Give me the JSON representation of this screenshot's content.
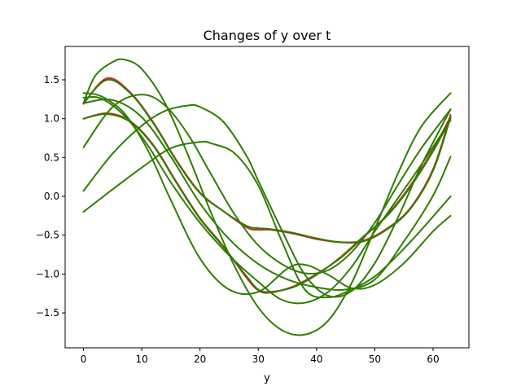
{
  "chart_data": {
    "type": "line",
    "title": "Changes of y over t",
    "xlabel": "y",
    "ylabel": "",
    "xlim": [
      -3.15,
      66.15
    ],
    "ylim": [
      -1.95,
      1.93
    ],
    "xticks": [
      0,
      10,
      20,
      30,
      40,
      50,
      60
    ],
    "yticks": [
      -1.5,
      -1.0,
      -0.5,
      0.0,
      0.5,
      1.0,
      1.5
    ],
    "ytick_labels": [
      "−1.5",
      "−1.0",
      "−0.5",
      "0.0",
      "0.5",
      "1.0",
      "1.5"
    ],
    "grid": false,
    "legend": "none",
    "colors": {
      "reference": "#d62728",
      "prediction": "#2e7d00"
    },
    "series": [
      {
        "color": "reference",
        "x": [
          0,
          4,
          8,
          12,
          16,
          20,
          24,
          28,
          30,
          32,
          36,
          40,
          44,
          48,
          52,
          56,
          60,
          63
        ],
        "values": [
          1.19,
          1.52,
          1.34,
          0.95,
          0.46,
          0.05,
          -0.19,
          -0.4,
          -0.43,
          -0.43,
          -0.48,
          -0.55,
          -0.59,
          -0.57,
          -0.42,
          -0.16,
          0.35,
          1.05
        ]
      },
      {
        "color": "reference",
        "x": [
          0,
          4,
          8,
          12,
          16,
          20,
          24,
          28,
          30,
          32,
          36,
          40,
          44,
          48,
          52,
          56,
          60,
          63
        ],
        "values": [
          1.0,
          1.07,
          0.97,
          0.66,
          0.18,
          -0.28,
          -0.64,
          -1.05,
          -1.21,
          -1.24,
          -1.16,
          -1.0,
          -0.8,
          -0.53,
          -0.25,
          0.13,
          0.6,
          1.03
        ]
      },
      {
        "color": "prediction",
        "x": [
          0,
          4,
          8,
          12,
          16,
          20,
          24,
          28,
          30,
          32,
          36,
          40,
          44,
          48,
          52,
          56,
          60,
          63
        ],
        "values": [
          1.2,
          1.5,
          1.33,
          0.94,
          0.45,
          0.04,
          -0.19,
          -0.38,
          -0.41,
          -0.42,
          -0.47,
          -0.54,
          -0.59,
          -0.58,
          -0.43,
          -0.17,
          0.33,
          1.02
        ]
      },
      {
        "color": "prediction",
        "x": [
          0,
          4,
          8,
          12,
          16,
          20,
          24,
          28,
          30,
          32,
          36,
          40,
          44,
          48,
          52,
          56,
          60,
          63
        ],
        "values": [
          1.0,
          1.06,
          0.96,
          0.65,
          0.17,
          -0.29,
          -0.65,
          -1.03,
          -1.2,
          -1.23,
          -1.17,
          -1.01,
          -0.79,
          -0.52,
          -0.26,
          0.11,
          0.58,
          1.0
        ]
      },
      {
        "color": "prediction",
        "x": [
          0,
          3,
          7,
          11,
          15,
          20,
          25,
          30,
          35,
          38,
          42,
          46,
          50,
          55,
          60,
          63
        ],
        "values": [
          1.33,
          1.29,
          1.07,
          0.6,
          -0.05,
          -0.8,
          -1.2,
          -1.23,
          -0.93,
          -0.88,
          -1.01,
          -1.18,
          -1.14,
          -0.86,
          -0.45,
          -0.25
        ]
      },
      {
        "color": "prediction",
        "x": [
          0,
          3,
          7,
          11,
          15,
          20,
          25,
          30,
          34,
          38,
          42,
          46,
          50,
          54,
          58,
          63
        ],
        "values": [
          1.27,
          1.26,
          1.04,
          0.66,
          0.18,
          -0.34,
          -0.76,
          -1.1,
          -1.33,
          -1.37,
          -1.23,
          -0.91,
          -0.45,
          -0.02,
          0.41,
          0.98
        ]
      },
      {
        "color": "prediction",
        "x": [
          0,
          2,
          5,
          7,
          10,
          14,
          18,
          22,
          26,
          30,
          34,
          38,
          42,
          46,
          50,
          54,
          58,
          63
        ],
        "values": [
          1.2,
          1.55,
          1.73,
          1.76,
          1.64,
          1.2,
          0.52,
          -0.23,
          -0.91,
          -1.43,
          -1.72,
          -1.78,
          -1.6,
          -1.12,
          -0.42,
          0.3,
          0.9,
          1.33
        ]
      },
      {
        "color": "prediction",
        "x": [
          0,
          5,
          10,
          14,
          18,
          22,
          26,
          30,
          34,
          38,
          42,
          46,
          50,
          54,
          58,
          63
        ],
        "values": [
          0.63,
          1.15,
          1.31,
          1.17,
          0.79,
          0.27,
          -0.24,
          -0.63,
          -0.87,
          -0.99,
          -0.95,
          -0.72,
          -0.34,
          0.15,
          0.62,
          1.12
        ]
      },
      {
        "color": "prediction",
        "x": [
          0,
          5,
          10,
          14,
          18,
          20,
          24,
          28,
          30,
          34,
          38,
          42,
          46,
          50,
          54,
          58,
          63
        ],
        "values": [
          0.07,
          0.55,
          0.91,
          1.1,
          1.17,
          1.15,
          0.96,
          0.52,
          0.2,
          -0.43,
          -1.01,
          -1.28,
          -1.22,
          -0.86,
          -0.27,
          0.4,
          1.12
        ]
      },
      {
        "color": "prediction",
        "x": [
          0,
          5,
          10,
          15,
          20,
          22,
          26,
          30,
          34,
          38,
          42,
          46,
          50,
          54,
          58,
          63
        ],
        "values": [
          -0.2,
          0.09,
          0.37,
          0.62,
          0.7,
          0.68,
          0.55,
          0.14,
          -0.57,
          -1.2,
          -1.3,
          -1.2,
          -1.03,
          -0.75,
          -0.43,
          0.0
        ]
      },
      {
        "color": "prediction",
        "x": [
          0,
          5,
          10,
          15,
          20,
          25,
          30,
          35,
          40,
          45,
          50,
          55,
          60,
          63
        ],
        "values": [
          1.2,
          1.24,
          1.02,
          0.51,
          -0.09,
          -0.55,
          -0.87,
          -1.07,
          -1.17,
          -1.2,
          -1.07,
          -0.58,
          0.01,
          0.51
        ]
      }
    ]
  }
}
